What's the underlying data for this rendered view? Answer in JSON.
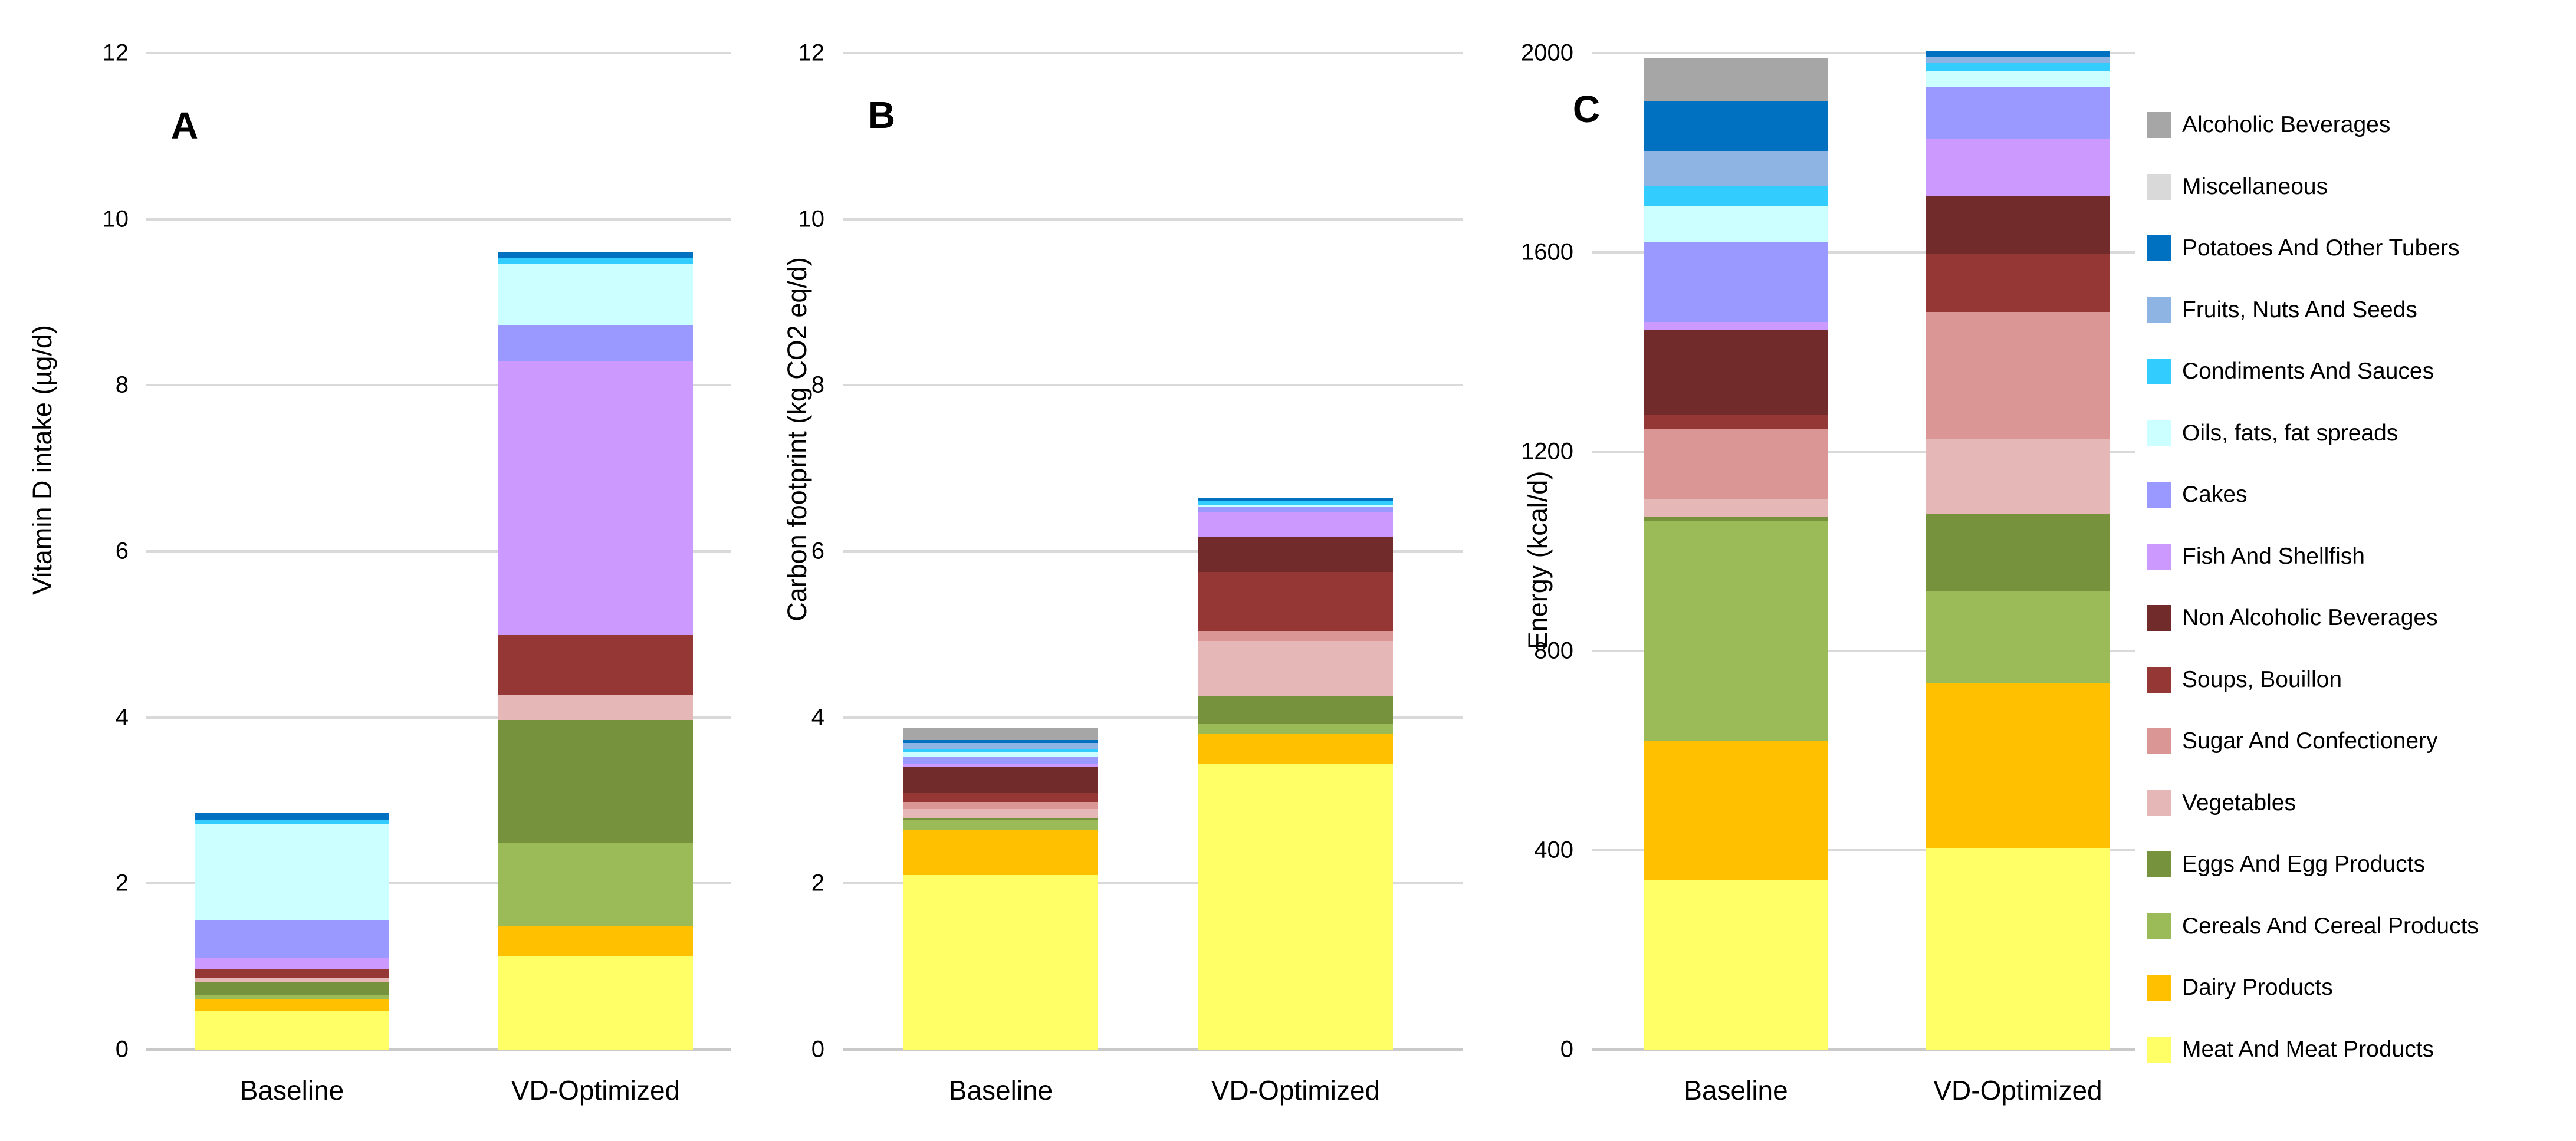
{
  "figure": {
    "background": "#ffffff"
  },
  "chart_data": {
    "type": "bar",
    "subtype": "stacked-vertical",
    "grid": true,
    "legend_position": "right",
    "stack_order_note": "categories listed bottom-to-top of each stacked bar; legend shows reverse order (top-to-bottom)",
    "categories": [
      {
        "name": "Meat And Meat Products",
        "color": "#FFFF66"
      },
      {
        "name": "Dairy Products",
        "color": "#FFC000"
      },
      {
        "name": "Cereals And Cereal Products",
        "color": "#9BBB59"
      },
      {
        "name": "Eggs And Egg Products",
        "color": "#76923C"
      },
      {
        "name": "Vegetables",
        "color": "#E5B8B7"
      },
      {
        "name": "Sugar And Confectionery",
        "color": "#D99694"
      },
      {
        "name": "Soups, Bouillon",
        "color": "#953735"
      },
      {
        "name": "Non Alcoholic Beverages",
        "color": "#722B2B"
      },
      {
        "name": "Fish And Shellfish",
        "color": "#CC99FF"
      },
      {
        "name": "Cakes",
        "color": "#9999FF"
      },
      {
        "name": "Oils, fats, fat spreads",
        "color": "#CCFFFF"
      },
      {
        "name": "Condiments And Sauces",
        "color": "#33CCFF"
      },
      {
        "name": "Fruits, Nuts And Seeds",
        "color": "#8EB4E3"
      },
      {
        "name": "Potatoes And Other Tubers",
        "color": "#0070C0"
      },
      {
        "name": "Miscellaneous",
        "color": "#D9D9D9"
      },
      {
        "name": "Alcoholic Beverages",
        "color": "#A6A6A6"
      }
    ],
    "panels": [
      {
        "letter": "A",
        "ylabel": "Vitamin D intake (µg/d)",
        "ymax": 12,
        "yticks": [
          0,
          2,
          4,
          6,
          8,
          10,
          12
        ],
        "x_categories": [
          "Baseline",
          "VD-Optimized"
        ],
        "bars": [
          {
            "label": "Baseline",
            "values": [
              0.47,
              0.14,
              0.05,
              0.16,
              0.04,
              0,
              0.11,
              0,
              0.14,
              0.45,
              1.15,
              0.06,
              0,
              0.08,
              0,
              0
            ],
            "total": 2.85
          },
          {
            "label": "VD-Optimized",
            "values": [
              1.13,
              0.36,
              1.0,
              1.48,
              0.3,
              0,
              0.72,
              0,
              3.3,
              0.43,
              0.74,
              0.08,
              0,
              0.06,
              0,
              0
            ],
            "total": 9.6
          }
        ]
      },
      {
        "letter": "B",
        "ylabel": "Carbon footprint (kg CO2 eq/d)",
        "ymax": 12,
        "yticks": [
          0,
          2,
          4,
          6,
          8,
          10,
          12
        ],
        "x_categories": [
          "Baseline",
          "VD-Optimized"
        ],
        "bars": [
          {
            "label": "Baseline",
            "values": [
              2.1,
              0.55,
              0.11,
              0.03,
              0.11,
              0.08,
              0.11,
              0.32,
              0.03,
              0.09,
              0.05,
              0.04,
              0.07,
              0.04,
              0,
              0.14
            ],
            "total": 3.87
          },
          {
            "label": "VD-Optimized",
            "values": [
              3.44,
              0.36,
              0.13,
              0.32,
              0.67,
              0.12,
              0.71,
              0.43,
              0.29,
              0.06,
              0.03,
              0.05,
              0,
              0.03,
              0,
              0
            ],
            "total": 6.64
          }
        ]
      },
      {
        "letter": "C",
        "ylabel": "Energy (kcal/d)",
        "ymax": 2000,
        "yticks": [
          0,
          400,
          800,
          1200,
          1600,
          2000
        ],
        "x_categories": [
          "Baseline",
          "VD-Optimized"
        ],
        "bars": [
          {
            "label": "Baseline",
            "values": [
              340,
              280,
              440,
              10,
              35,
              140,
              30,
              170,
              15,
              160,
              72,
              42,
              70,
              100,
              0,
              85
            ],
            "total": 1989
          },
          {
            "label": "VD-Optimized",
            "values": [
              405,
              330,
              185,
              155,
              150,
              255,
              117,
              116,
              115,
              105,
              30,
              18,
              12,
              11,
              0,
              0
            ],
            "total": 2004
          }
        ]
      }
    ]
  }
}
